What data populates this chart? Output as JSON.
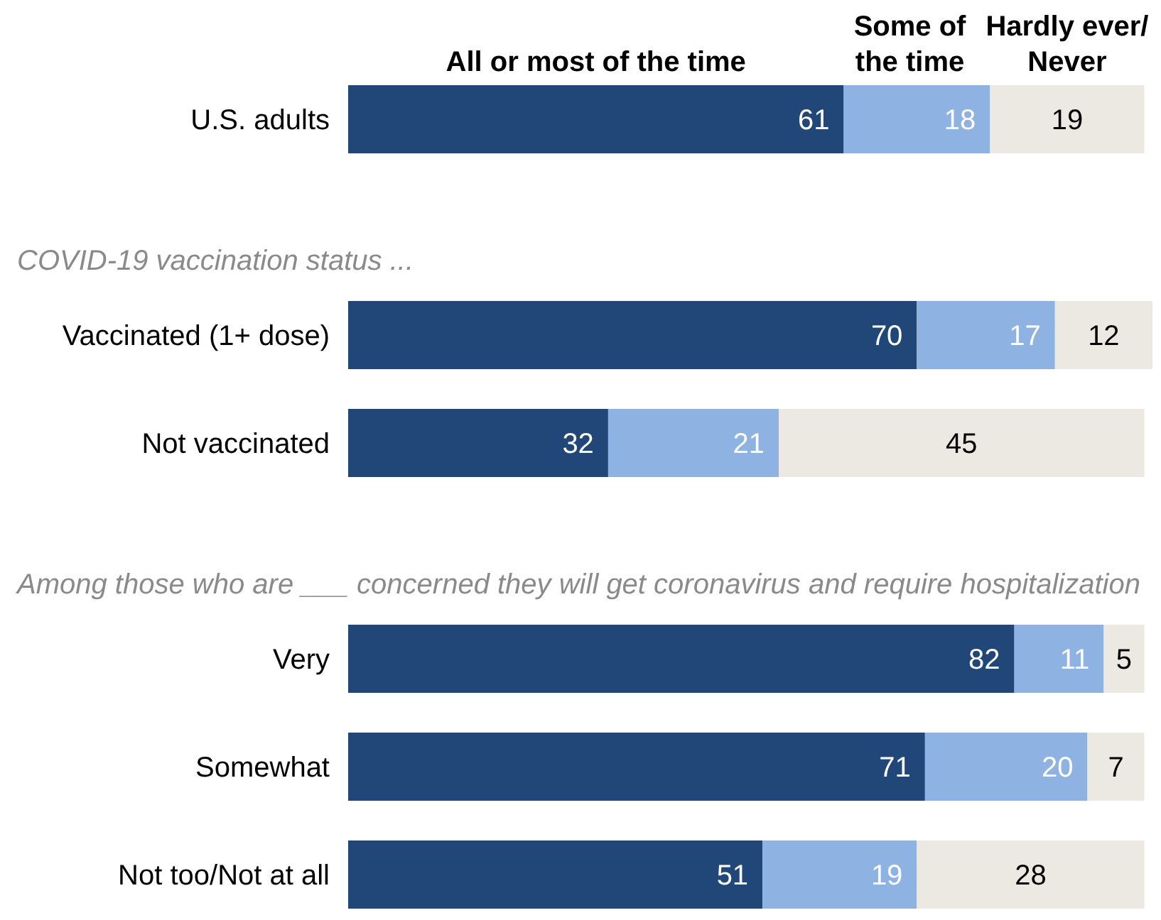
{
  "chart_data": {
    "type": "bar",
    "orientation": "horizontal",
    "stacked": true,
    "data_labels": true,
    "legend": "top",
    "tick_labels": "y",
    "categories": [
      "U.S. adults",
      "Vaccinated (1+ dose)",
      "Not vaccinated",
      "Very",
      "Somewhat",
      "Not too/Not at all"
    ],
    "series": [
      {
        "name": "All or most of the time",
        "color": "#204778",
        "values": [
          61,
          70,
          32,
          82,
          71,
          51
        ]
      },
      {
        "name": "Some of the time",
        "color": "#8eb3e2",
        "values": [
          18,
          17,
          21,
          11,
          20,
          19
        ]
      },
      {
        "name": "Hardly ever/Never",
        "color": "#ece9e3",
        "values": [
          19,
          12,
          45,
          5,
          7,
          28
        ]
      }
    ],
    "annotations": [
      "COVID-19 vaccination status ...",
      "Among those who are ___ concerned they will get coronavirus and require hospitalization"
    ]
  }
}
